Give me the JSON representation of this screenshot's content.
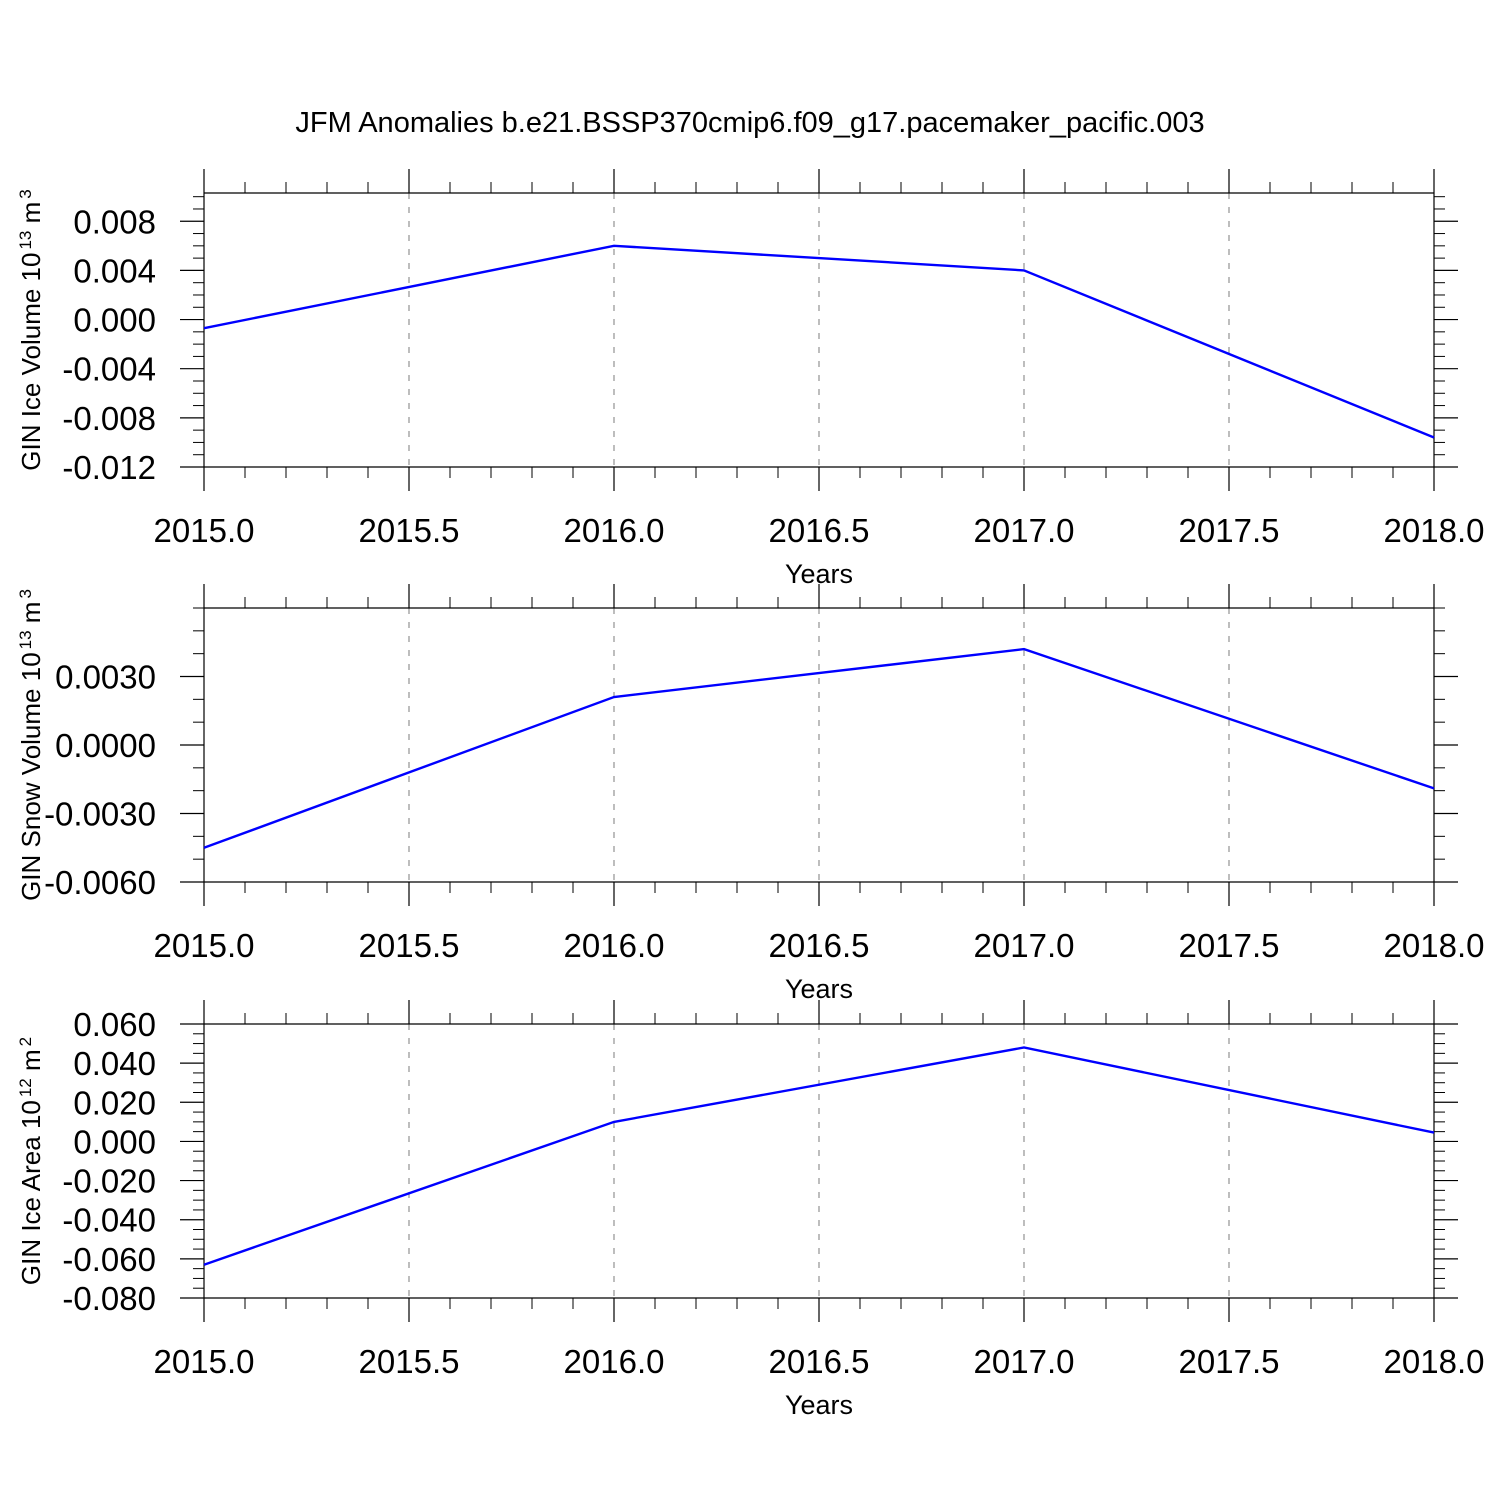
{
  "figure": {
    "title": "JFM Anomalies b.e21.BSSP370cmip6.f09_g17.pacemaker_pacific.003"
  },
  "chart_data": [
    {
      "type": "line",
      "title": "",
      "xlabel": "Years",
      "ylabel": "GIN Ice Volume 10",
      "ylabel_exp": "13",
      "ylabel_unit": "m",
      "ylabel_unit_exp": "3",
      "x": [
        2015,
        2016,
        2017,
        2018
      ],
      "series": [
        {
          "values": [
            -0.0007,
            0.006,
            0.004,
            -0.0096
          ],
          "color": "#0000ff"
        }
      ],
      "xlim": [
        2015.0,
        2018.0
      ],
      "ylim": [
        -0.012,
        0.0103
      ],
      "xticks": [
        "2015.0",
        "2015.5",
        "2016.0",
        "2016.5",
        "2017.0",
        "2017.5",
        "2018.0"
      ],
      "yticks": [
        {
          "value": 0.008,
          "label": "0.008"
        },
        {
          "value": 0.004,
          "label": "0.004"
        },
        {
          "value": 0.0,
          "label": "0.000"
        },
        {
          "value": -0.004,
          "label": "-0.004"
        },
        {
          "value": -0.008,
          "label": "-0.008"
        },
        {
          "value": -0.012,
          "label": "-0.012"
        }
      ],
      "minor_y_step": 0.001,
      "grid": "vertical dashed at major x ticks"
    },
    {
      "type": "line",
      "title": "",
      "xlabel": "Years",
      "ylabel": "GIN Snow Volume 10",
      "ylabel_exp": "13",
      "ylabel_unit": "m",
      "ylabel_unit_exp": "3",
      "x": [
        2015,
        2016,
        2017,
        2018
      ],
      "series": [
        {
          "values": [
            -0.0045,
            0.0021,
            0.0042,
            -0.0019
          ],
          "color": "#0000ff"
        }
      ],
      "xlim": [
        2015.0,
        2018.0
      ],
      "ylim": [
        -0.006,
        0.006
      ],
      "xticks": [
        "2015.0",
        "2015.5",
        "2016.0",
        "2016.5",
        "2017.0",
        "2017.5",
        "2018.0"
      ],
      "yticks": [
        {
          "value": 0.003,
          "label": "0.0030"
        },
        {
          "value": 0.0,
          "label": "0.0000"
        },
        {
          "value": -0.003,
          "label": "-0.0030"
        },
        {
          "value": -0.006,
          "label": "-0.0060"
        }
      ],
      "minor_y_step": 0.001,
      "grid": "vertical dashed at major x ticks"
    },
    {
      "type": "line",
      "title": "",
      "xlabel": "Years",
      "ylabel": "GIN Ice Area 10",
      "ylabel_exp": "12",
      "ylabel_unit": "m",
      "ylabel_unit_exp": "2",
      "x": [
        2015,
        2016,
        2017,
        2018
      ],
      "series": [
        {
          "values": [
            -0.063,
            0.01,
            0.048,
            0.0045
          ],
          "color": "#0000ff"
        }
      ],
      "xlim": [
        2015.0,
        2018.0
      ],
      "ylim": [
        -0.08,
        0.06
      ],
      "xticks": [
        "2015.0",
        "2015.5",
        "2016.0",
        "2016.5",
        "2017.0",
        "2017.5",
        "2018.0"
      ],
      "yticks": [
        {
          "value": 0.06,
          "label": "0.060"
        },
        {
          "value": 0.04,
          "label": "0.040"
        },
        {
          "value": 0.02,
          "label": "0.020"
        },
        {
          "value": 0.0,
          "label": "0.000"
        },
        {
          "value": -0.02,
          "label": "-0.020"
        },
        {
          "value": -0.04,
          "label": "-0.040"
        },
        {
          "value": -0.06,
          "label": "-0.060"
        },
        {
          "value": -0.08,
          "label": "-0.080"
        }
      ],
      "minor_y_step": 0.005,
      "grid": "vertical dashed at major x ticks"
    }
  ]
}
